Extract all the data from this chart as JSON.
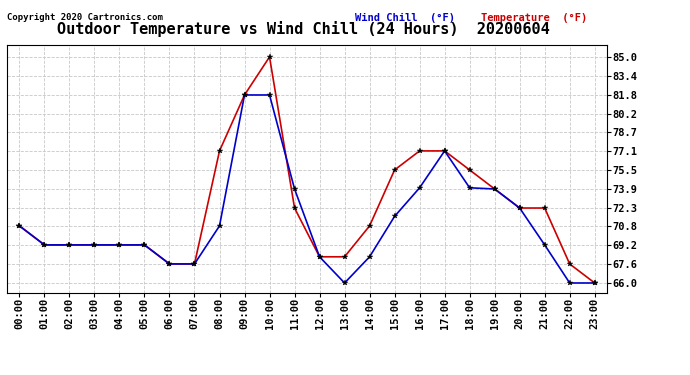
{
  "title": "Outdoor Temperature vs Wind Chill (24 Hours)  20200604",
  "copyright": "Copyright 2020 Cartronics.com",
  "legend_wind_chill": "Wind Chill  (°F)",
  "legend_temp": "Temperature  (°F)",
  "hours": [
    0,
    1,
    2,
    3,
    4,
    5,
    6,
    7,
    8,
    9,
    10,
    11,
    12,
    13,
    14,
    15,
    16,
    17,
    18,
    19,
    20,
    21,
    22,
    23
  ],
  "temperature": [
    70.8,
    69.2,
    69.2,
    69.2,
    69.2,
    69.2,
    67.6,
    67.6,
    77.1,
    81.8,
    85.0,
    72.3,
    68.2,
    68.2,
    70.8,
    75.5,
    77.1,
    77.1,
    75.5,
    73.9,
    72.3,
    72.3,
    67.6,
    66.0
  ],
  "wind_chill": [
    70.8,
    69.2,
    69.2,
    69.2,
    69.2,
    69.2,
    67.6,
    67.6,
    70.8,
    81.8,
    81.8,
    73.9,
    68.2,
    66.0,
    68.2,
    71.6,
    74.0,
    77.1,
    74.0,
    73.9,
    72.3,
    69.2,
    66.0,
    66.0
  ],
  "ylim": [
    65.2,
    86.0
  ],
  "yticks": [
    66.0,
    67.6,
    69.2,
    70.8,
    72.3,
    73.9,
    75.5,
    77.1,
    78.7,
    80.2,
    81.8,
    83.4,
    85.0
  ],
  "temp_color": "#cc0000",
  "wind_color": "#0000cc",
  "marker_color": "#000000",
  "grid_color": "#c8c8c8",
  "background_color": "#ffffff",
  "title_fontsize": 11,
  "tick_fontsize": 7.5,
  "copyright_fontsize": 6.5,
  "legend_fontsize": 7.5
}
